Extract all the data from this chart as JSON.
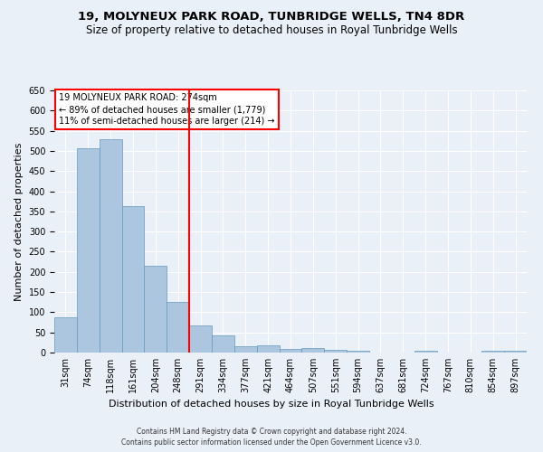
{
  "title": "19, MOLYNEUX PARK ROAD, TUNBRIDGE WELLS, TN4 8DR",
  "subtitle": "Size of property relative to detached houses in Royal Tunbridge Wells",
  "xlabel": "Distribution of detached houses by size in Royal Tunbridge Wells",
  "ylabel": "Number of detached properties",
  "footer1": "Contains HM Land Registry data © Crown copyright and database right 2024.",
  "footer2": "Contains public sector information licensed under the Open Government Licence v3.0.",
  "categories": [
    "31sqm",
    "74sqm",
    "118sqm",
    "161sqm",
    "204sqm",
    "248sqm",
    "291sqm",
    "334sqm",
    "377sqm",
    "421sqm",
    "464sqm",
    "507sqm",
    "551sqm",
    "594sqm",
    "637sqm",
    "681sqm",
    "724sqm",
    "767sqm",
    "810sqm",
    "854sqm",
    "897sqm"
  ],
  "values": [
    88,
    507,
    528,
    363,
    215,
    125,
    68,
    42,
    16,
    19,
    10,
    11,
    7,
    4,
    1,
    1,
    4,
    1,
    1,
    4,
    4
  ],
  "bar_color": "#adc6e0",
  "bar_edge_color": "#6699bb",
  "vline_x": 5.5,
  "vline_color": "red",
  "property_name": "19 MOLYNEUX PARK ROAD: 274sqm",
  "annotation_line1": "← 89% of detached houses are smaller (1,779)",
  "annotation_line2": "11% of semi-detached houses are larger (214) →",
  "annotation_box_color": "white",
  "annotation_box_edge": "red",
  "ylim": [
    0,
    650
  ],
  "yticks": [
    0,
    50,
    100,
    150,
    200,
    250,
    300,
    350,
    400,
    450,
    500,
    550,
    600,
    650
  ],
  "background_color": "#eaf0f8",
  "grid_color": "white",
  "title_fontsize": 9.5,
  "subtitle_fontsize": 8.5,
  "xlabel_fontsize": 8,
  "ylabel_fontsize": 8,
  "annot_fontsize": 7,
  "tick_fontsize": 7,
  "footer_fontsize": 5.5
}
